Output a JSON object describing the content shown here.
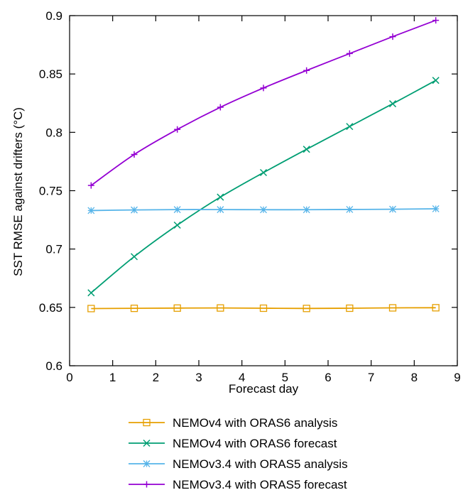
{
  "chart_data": {
    "type": "line",
    "xlabel": "Forecast day",
    "ylabel": "SST RMSE against drifters (°C)",
    "xlim": [
      0,
      9
    ],
    "ylim": [
      0.6,
      0.9
    ],
    "xticks": [
      "0",
      "1",
      "2",
      "3",
      "4",
      "5",
      "6",
      "7",
      "8",
      "9"
    ],
    "yticks": [
      "0.6",
      "0.65",
      "0.7",
      "0.75",
      "0.8",
      "0.85",
      "0.9"
    ],
    "grid": false,
    "legend_position": "below",
    "x": [
      0.5,
      1.5,
      2.5,
      3.5,
      4.5,
      5.5,
      6.5,
      7.5,
      8.5
    ],
    "series": [
      {
        "name": "NEMOv4 with ORAS6 analysis",
        "color": "#e69f00",
        "marker": "square",
        "values": [
          0.649,
          0.6492,
          0.6494,
          0.6495,
          0.6493,
          0.6491,
          0.6493,
          0.6496,
          0.6497
        ]
      },
      {
        "name": "NEMOv4 with ORAS6 forecast",
        "color": "#009e73",
        "marker": "x",
        "values": [
          0.6625,
          0.6935,
          0.7205,
          0.7445,
          0.7655,
          0.7855,
          0.805,
          0.8245,
          0.8445
        ]
      },
      {
        "name": "NEMOv3.4 with ORAS5 analysis",
        "color": "#56b4e9",
        "marker": "star",
        "values": [
          0.733,
          0.7335,
          0.7338,
          0.7338,
          0.7337,
          0.7337,
          0.7339,
          0.7341,
          0.7345
        ]
      },
      {
        "name": "NEMOv3.4 with ORAS5 forecast",
        "color": "#9400d3",
        "marker": "plus",
        "values": [
          0.7545,
          0.781,
          0.8025,
          0.8215,
          0.838,
          0.853,
          0.8675,
          0.882,
          0.896
        ]
      }
    ]
  }
}
